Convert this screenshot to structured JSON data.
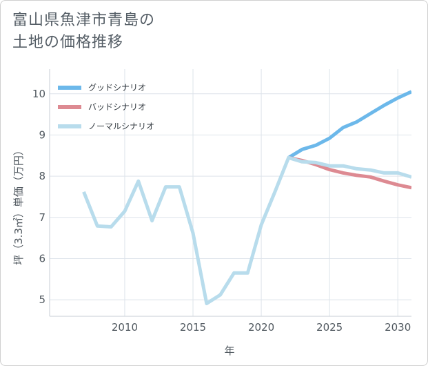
{
  "title": {
    "line1": "富山県魚津市青島の",
    "line2": "土地の価格推移"
  },
  "chart_data": {
    "type": "line",
    "title": "富山県魚津市青島の土地の価格推移",
    "xlabel": "年",
    "ylabel": "坪（3.3㎡）単価（万円）",
    "xlim": [
      2004.5,
      2031
    ],
    "ylim": [
      4.6,
      10.6
    ],
    "x_ticks": [
      2010,
      2015,
      2020,
      2025,
      2030
    ],
    "y_ticks": [
      5,
      6,
      7,
      8,
      9,
      10
    ],
    "grid": true,
    "legend_position": "top-left",
    "series": [
      {
        "name": "グッドシナリオ",
        "color": "#6cb8ea",
        "x": [
          2022,
          2023,
          2024,
          2025,
          2026,
          2027,
          2028,
          2029,
          2030,
          2031
        ],
        "values": [
          8.45,
          8.65,
          8.75,
          8.92,
          9.18,
          9.32,
          9.52,
          9.72,
          9.9,
          10.05
        ]
      },
      {
        "name": "バッドシナリオ",
        "color": "#dd8a92",
        "x": [
          2022,
          2023,
          2024,
          2025,
          2026,
          2027,
          2028,
          2029,
          2030,
          2031
        ],
        "values": [
          8.45,
          8.38,
          8.28,
          8.16,
          8.08,
          8.02,
          7.98,
          7.88,
          7.79,
          7.72
        ]
      },
      {
        "name": "ノーマルシナリオ",
        "color": "#b8dcec",
        "x": [
          2007,
          2008,
          2009,
          2010,
          2011,
          2012,
          2013,
          2014,
          2015,
          2016,
          2017,
          2018,
          2019,
          2020,
          2021,
          2022,
          2023,
          2024,
          2025,
          2026,
          2027,
          2028,
          2029,
          2030,
          2031
        ],
        "values": [
          7.62,
          6.79,
          6.77,
          7.15,
          7.88,
          6.92,
          7.74,
          7.74,
          6.62,
          4.91,
          5.12,
          5.65,
          5.65,
          6.82,
          7.62,
          8.45,
          8.35,
          8.33,
          8.25,
          8.25,
          8.18,
          8.15,
          8.08,
          8.08,
          7.98
        ]
      }
    ]
  }
}
